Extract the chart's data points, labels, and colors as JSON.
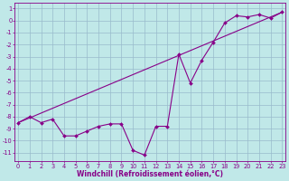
{
  "x_values": [
    0,
    1,
    2,
    3,
    4,
    5,
    6,
    7,
    8,
    9,
    10,
    11,
    12,
    13,
    14,
    15,
    16,
    17,
    18,
    19,
    20,
    21,
    22,
    23
  ],
  "windchill_y": [
    -8.5,
    -8.0,
    -8.5,
    -8.2,
    -9.6,
    -9.6,
    -9.2,
    -8.8,
    -8.6,
    -8.6,
    -10.8,
    -11.2,
    -8.8,
    -8.8,
    -2.8,
    -5.2,
    -3.3,
    -1.8,
    -0.2,
    0.4,
    0.3,
    0.5,
    0.2,
    0.7
  ],
  "bg_color": "#c0e8e8",
  "line_color": "#880088",
  "grid_color": "#99bbcc",
  "xlabel": "Windchill (Refroidissement éolien,°C)",
  "xlim": [
    -0.3,
    23.3
  ],
  "ylim": [
    -11.7,
    1.5
  ],
  "yticks": [
    1,
    0,
    -1,
    -2,
    -3,
    -4,
    -5,
    -6,
    -7,
    -8,
    -9,
    -10,
    -11
  ],
  "xticks": [
    0,
    1,
    2,
    3,
    4,
    5,
    6,
    7,
    8,
    9,
    10,
    11,
    12,
    13,
    14,
    15,
    16,
    17,
    18,
    19,
    20,
    21,
    22,
    23
  ],
  "font_color": "#880088",
  "tick_fontsize": 4.8,
  "label_fontsize": 5.5
}
